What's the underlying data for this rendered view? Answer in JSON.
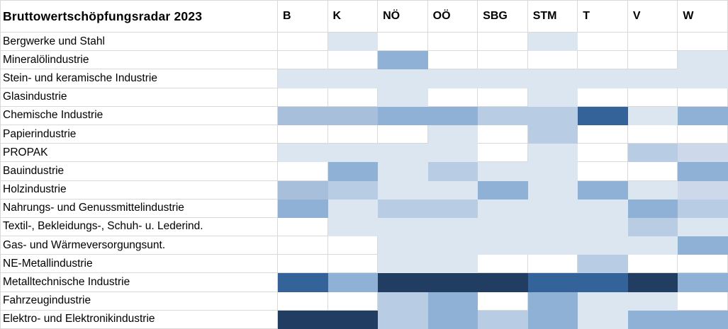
{
  "title": "Bruttowertschöpfungsradar 2023",
  "columns": [
    "B",
    "K",
    "NÖ",
    "OÖ",
    "SBG",
    "STM",
    "T",
    "V",
    "W"
  ],
  "palette": {
    "0": "#ffffff",
    "1": "#dce6f1",
    "1p": "#cdd9ea",
    "2": "#b8cce4",
    "2p": "#a8bfdc",
    "3": "#8fb1d5",
    "4": "#336399",
    "5": "#213d62"
  },
  "grid_color": "#d9d9d9",
  "rows": [
    {
      "label": "Bergwerke und Stahl",
      "cells": [
        "0",
        "1",
        "0",
        "0",
        "0",
        "1",
        "0",
        "0",
        "0"
      ]
    },
    {
      "label": "Mineralölindustrie",
      "cells": [
        "0",
        "0",
        "3",
        "0",
        "0",
        "0",
        "0",
        "0",
        "1"
      ]
    },
    {
      "label": "Stein- und keramische Industrie",
      "cells": [
        "1",
        "1",
        "1",
        "1",
        "1",
        "1",
        "1",
        "1",
        "1"
      ]
    },
    {
      "label": "Glasindustrie",
      "cells": [
        "0",
        "0",
        "1",
        "0",
        "0",
        "1",
        "0",
        "0",
        "0"
      ]
    },
    {
      "label": "Chemische Industrie",
      "cells": [
        "2p",
        "2p",
        "3",
        "3",
        "2",
        "2",
        "4",
        "1",
        "3"
      ]
    },
    {
      "label": "Papierindustrie",
      "cells": [
        "0",
        "0",
        "0",
        "1",
        "0",
        "2",
        "0",
        "0",
        "0"
      ]
    },
    {
      "label": "PROPAK",
      "cells": [
        "1",
        "1",
        "1",
        "1",
        "0",
        "1",
        "0",
        "2",
        "1p"
      ]
    },
    {
      "label": "Bauindustrie",
      "cells": [
        "0",
        "3",
        "1",
        "2",
        "1",
        "1",
        "0",
        "0",
        "3"
      ]
    },
    {
      "label": "Holzindustrie",
      "cells": [
        "2p",
        "2",
        "1",
        "1",
        "3",
        "1",
        "3",
        "1",
        "1p"
      ]
    },
    {
      "label": "Nahrungs- und Genussmittelindustrie",
      "cells": [
        "3",
        "1",
        "2",
        "2",
        "1",
        "1",
        "1",
        "3",
        "2"
      ]
    },
    {
      "label": "Textil-, Bekleidungs-, Schuh- u. Lederind.",
      "cells": [
        "0",
        "1",
        "1",
        "1",
        "1",
        "1",
        "1",
        "2",
        "1"
      ]
    },
    {
      "label": "Gas- und Wärmeversorgungsunt.",
      "cells": [
        "0",
        "0",
        "1",
        "1",
        "1",
        "1",
        "1",
        "1",
        "3"
      ]
    },
    {
      "label": "NE-Metallindustrie",
      "cells": [
        "0",
        "0",
        "1",
        "1",
        "0",
        "0",
        "2",
        "0",
        "0"
      ]
    },
    {
      "label": "Metalltechnische Industrie",
      "cells": [
        "4",
        "3",
        "5",
        "5",
        "5",
        "4",
        "4",
        "5",
        "3"
      ]
    },
    {
      "label": "Fahrzeugindustrie",
      "cells": [
        "0",
        "0",
        "2",
        "3",
        "0",
        "3",
        "1",
        "1",
        "0"
      ]
    },
    {
      "label": "Elektro- und Elektronikindustrie",
      "cells": [
        "5",
        "5",
        "2",
        "3",
        "2",
        "3",
        "1",
        "3",
        "3"
      ]
    }
  ],
  "chart_data": {
    "type": "heatmap",
    "title": "Bruttowertschöpfungsradar 2023",
    "x_labels": [
      "B",
      "K",
      "NÖ",
      "OÖ",
      "SBG",
      "STM",
      "T",
      "V",
      "W"
    ],
    "y_labels": [
      "Bergwerke und Stahl",
      "Mineralölindustrie",
      "Stein- und keramische Industrie",
      "Glasindustrie",
      "Chemische Industrie",
      "Papierindustrie",
      "PROPAK",
      "Bauindustrie",
      "Holzindustrie",
      "Nahrungs- und Genussmittelindustrie",
      "Textil-, Bekleidungs-, Schuh- u. Lederind.",
      "Gas- und Wärmeversorgungsunt.",
      "NE-Metallindustrie",
      "Metalltechnische Industrie",
      "Fahrzeugindustrie",
      "Elektro- und Elektronikindustrie"
    ],
    "values": [
      [
        0,
        1,
        0,
        0,
        0,
        1,
        0,
        0,
        0
      ],
      [
        0,
        0,
        3,
        0,
        0,
        0,
        0,
        0,
        1
      ],
      [
        1,
        1,
        1,
        1,
        1,
        1,
        1,
        1,
        1
      ],
      [
        0,
        0,
        1,
        0,
        0,
        1,
        0,
        0,
        0
      ],
      [
        2.5,
        2.5,
        3,
        3,
        2,
        2,
        4,
        1,
        3
      ],
      [
        0,
        0,
        0,
        1,
        0,
        2,
        0,
        0,
        0
      ],
      [
        1,
        1,
        1,
        1,
        0,
        1,
        0,
        2,
        1.5
      ],
      [
        0,
        3,
        1,
        2,
        1,
        1,
        0,
        0,
        3
      ],
      [
        2.5,
        2,
        1,
        1,
        3,
        1,
        3,
        1,
        1.5
      ],
      [
        3,
        1,
        2,
        2,
        1,
        1,
        1,
        3,
        2
      ],
      [
        0,
        1,
        1,
        1,
        1,
        1,
        1,
        2,
        1
      ],
      [
        0,
        0,
        1,
        1,
        1,
        1,
        1,
        1,
        3
      ],
      [
        0,
        0,
        1,
        1,
        0,
        0,
        2,
        0,
        0
      ],
      [
        4,
        3,
        5,
        5,
        5,
        4,
        4,
        5,
        3
      ],
      [
        0,
        0,
        2,
        3,
        0,
        3,
        1,
        1,
        0
      ],
      [
        5,
        5,
        2,
        3,
        2,
        3,
        1,
        3,
        3
      ],
      {
        "note": "values are color-intensity levels read from cell fills: 0=white (no fill) up to 5=dark navy (highest intensity); no numeric labels are shown in the source image"
      }
    ],
    "legend": "none",
    "grid": true
  }
}
